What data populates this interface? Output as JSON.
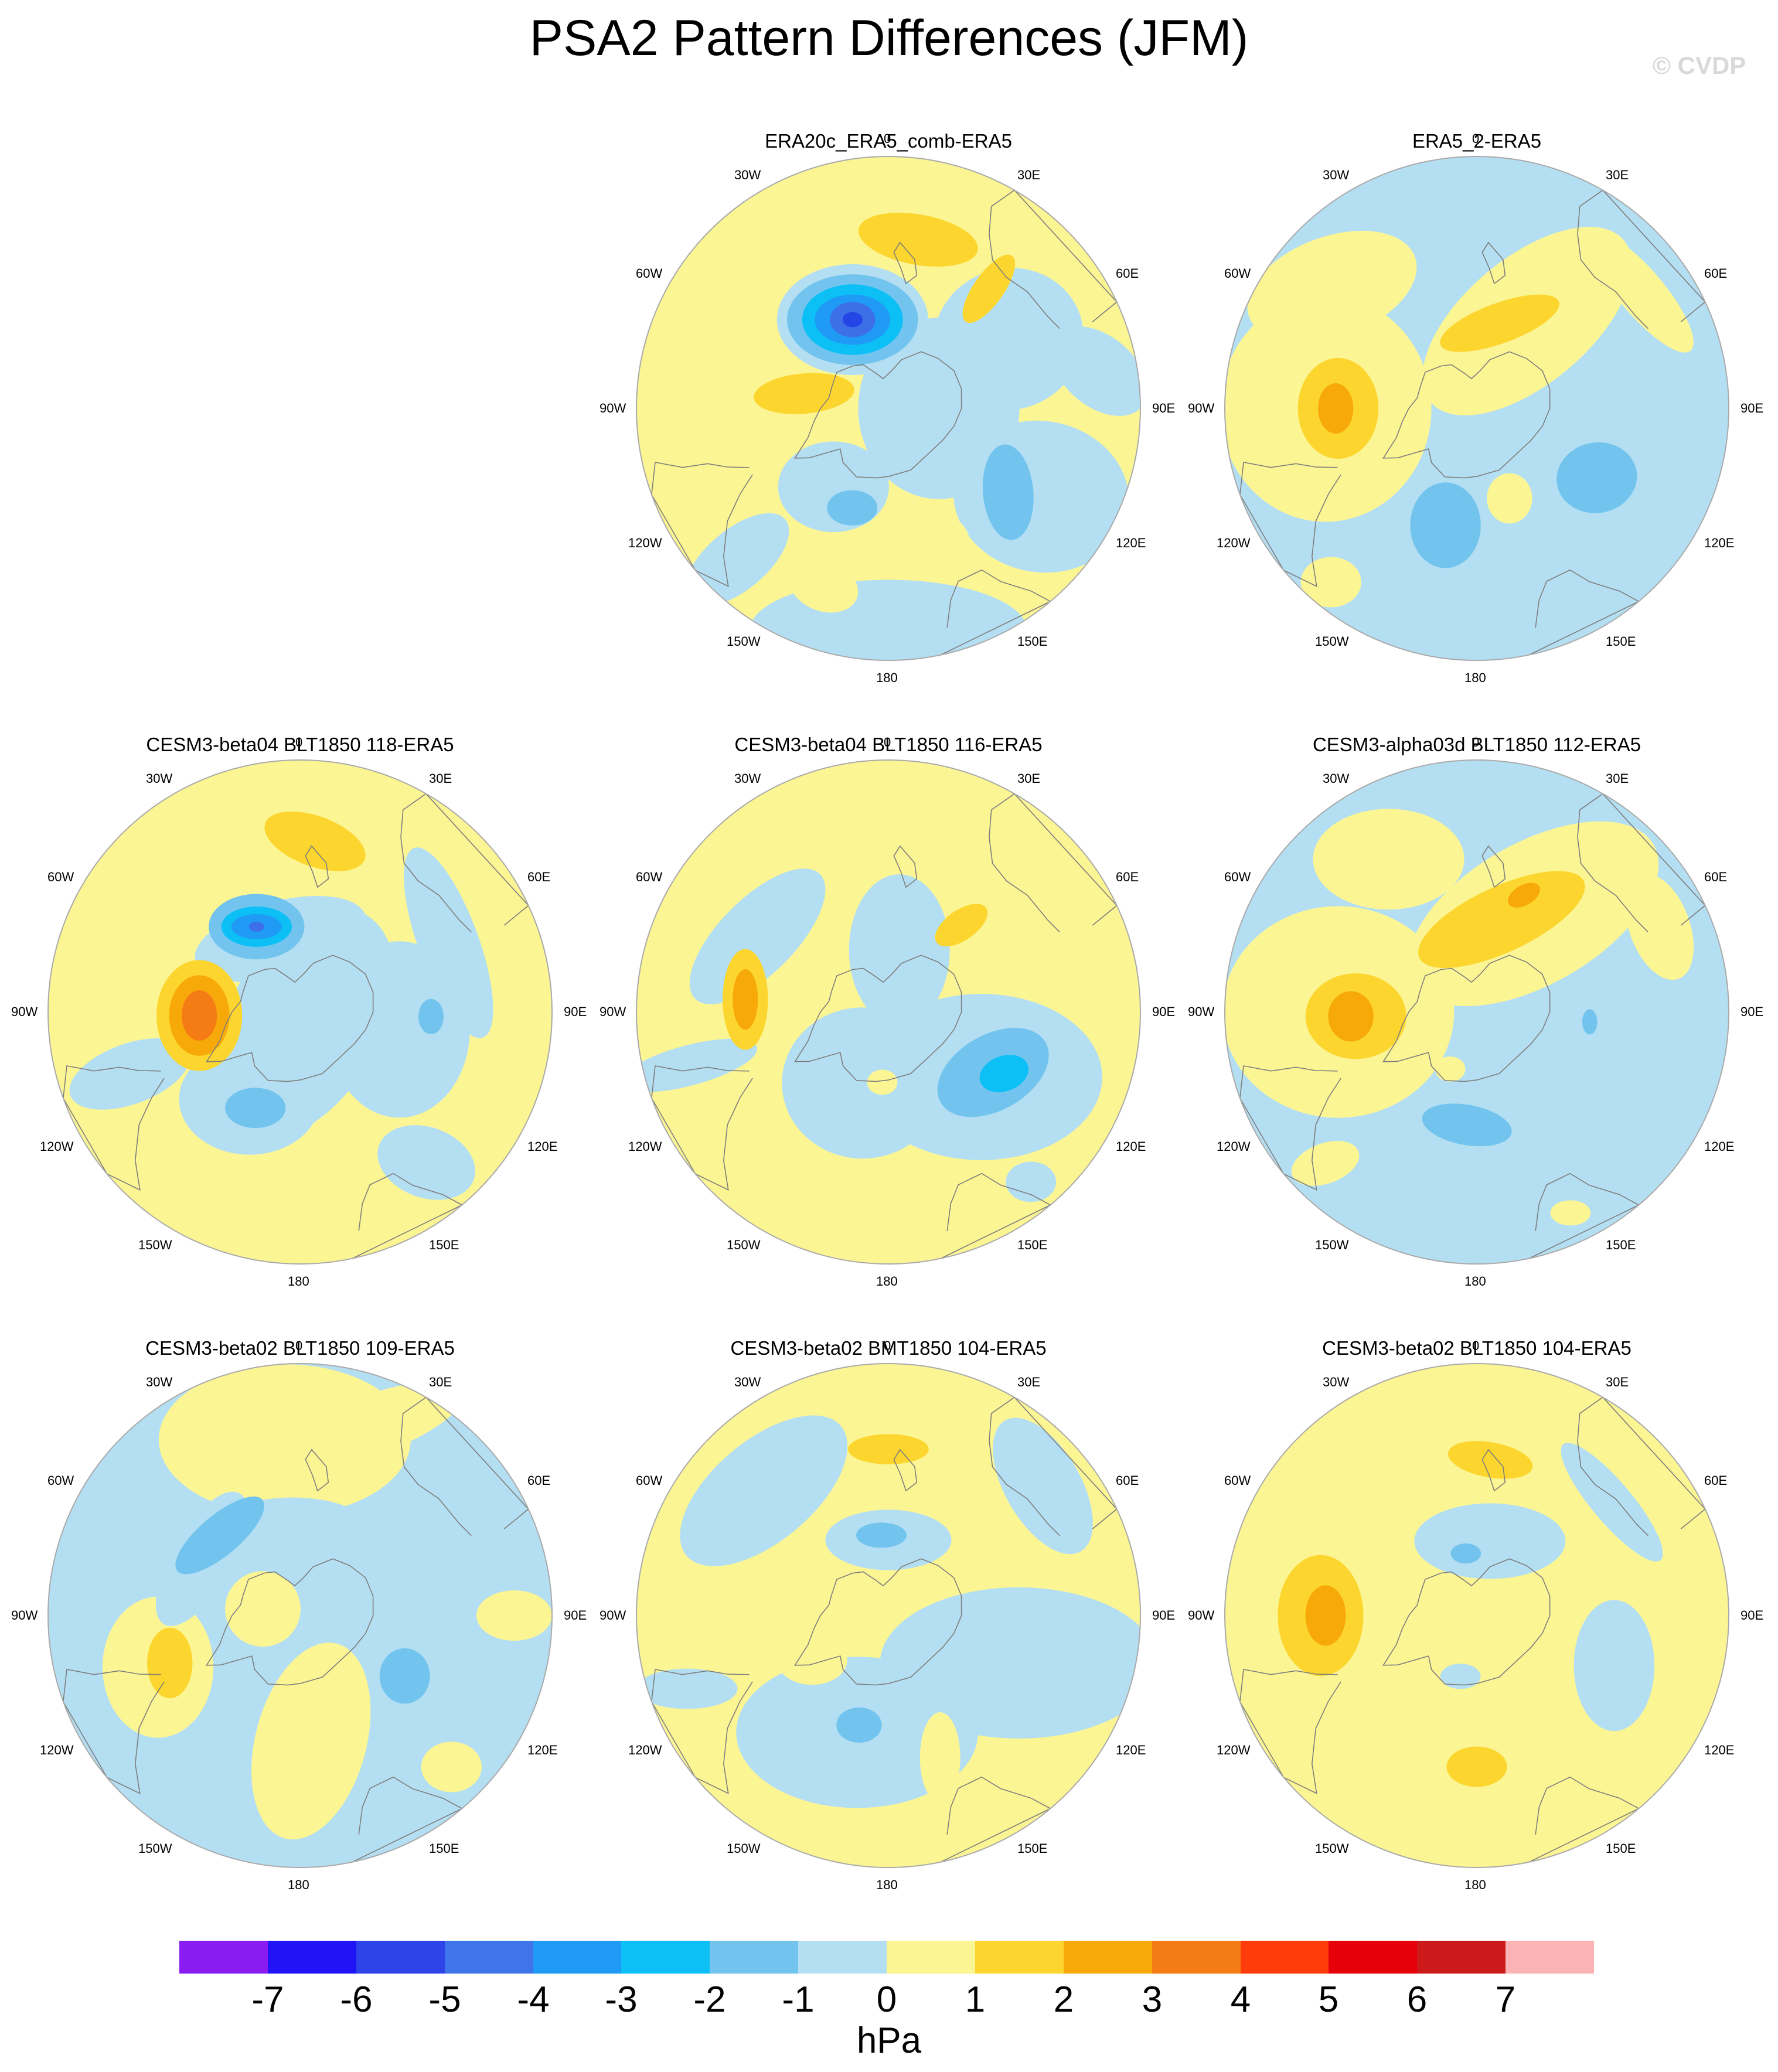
{
  "title": "PSA2 Pattern Differences (JFM)",
  "watermark": "© CVDP",
  "colors": {
    "neg1": "#b4dff2",
    "neg2": "#72c4ef",
    "neg3": "#0cc0f5",
    "neg4": "#1f9af5",
    "neg5": "#3c6fe8",
    "neg6": "#2446e6",
    "pos1": "#fcf594",
    "pos2": "#fcd62e",
    "pos3": "#f7a90a",
    "pos4": "#f57b14",
    "coast": "#7d7d7d",
    "rim": "#aaaaaa"
  },
  "longitude_labels": [
    "0",
    "30E",
    "60E",
    "90E",
    "120E",
    "150E",
    "180",
    "150W",
    "120W",
    "90W",
    "60W",
    "30W"
  ],
  "panels": [
    {
      "title": "ERA20c_ERA5_comb-ERA5",
      "base": "pos1",
      "blobs": [
        {
          "lvl": "neg1",
          "lon": 0,
          "r": 0.88,
          "a": 0.55,
          "b": 0.2,
          "rot": 0
        },
        {
          "lvl": "neg1",
          "lon": 60,
          "r": 0.7,
          "a": 0.35,
          "b": 0.3,
          "rot": 10
        },
        {
          "lvl": "neg1",
          "lon": 90,
          "r": 0.2,
          "a": 0.32,
          "b": 0.36,
          "rot": 0
        },
        {
          "lvl": "neg1",
          "lon": 120,
          "r": 0.55,
          "a": 0.3,
          "b": 0.28,
          "rot": -20
        },
        {
          "lvl": "neg1",
          "lon": 100,
          "r": 0.85,
          "a": 0.22,
          "b": 0.14,
          "rot": 40
        },
        {
          "lvl": "neg1",
          "lon": -45,
          "r": 0.85,
          "a": 0.25,
          "b": 0.12,
          "rot": -40
        },
        {
          "lvl": "neg1",
          "lon": -35,
          "r": 0.38,
          "a": 0.22,
          "b": 0.18,
          "rot": 0
        },
        {
          "lvl": "pos1",
          "lon": 15,
          "r": 0.55,
          "a": 0.18,
          "b": 0.13,
          "rot": 0
        },
        {
          "lvl": "pos1",
          "lon": -20,
          "r": 0.75,
          "a": 0.14,
          "b": 0.1,
          "rot": 20
        },
        {
          "lvl": "neg2",
          "lon": -20,
          "r": 0.42,
          "a": 0.1,
          "b": 0.07,
          "rot": 0
        },
        {
          "lvl": "neg2",
          "lon": 55,
          "r": 0.58,
          "a": 0.1,
          "b": 0.19,
          "rot": -5
        },
        {
          "lvl": "pos2",
          "lon": -100,
          "r": 0.34,
          "a": 0.2,
          "b": 0.08,
          "rot": -5
        },
        {
          "lvl": "neg1",
          "lon": -158,
          "r": 0.38,
          "a": 0.3,
          "b": 0.22,
          "rot": 0
        },
        {
          "lvl": "neg2",
          "lon": -158,
          "r": 0.38,
          "a": 0.26,
          "b": 0.18,
          "rot": 0
        },
        {
          "lvl": "neg3",
          "lon": -158,
          "r": 0.38,
          "a": 0.2,
          "b": 0.14,
          "rot": 0
        },
        {
          "lvl": "neg4",
          "lon": -158,
          "r": 0.38,
          "a": 0.15,
          "b": 0.1,
          "rot": 0
        },
        {
          "lvl": "neg5",
          "lon": -158,
          "r": 0.38,
          "a": 0.09,
          "b": 0.07,
          "rot": 0
        },
        {
          "lvl": "neg6",
          "lon": -158,
          "r": 0.38,
          "a": 0.04,
          "b": 0.03,
          "rot": 0
        },
        {
          "lvl": "pos2",
          "lon": 170,
          "r": 0.68,
          "a": 0.24,
          "b": 0.1,
          "rot": 10
        },
        {
          "lvl": "pos2",
          "lon": 140,
          "r": 0.62,
          "a": 0.16,
          "b": 0.06,
          "rot": -55
        }
      ]
    },
    {
      "title": "ERA5_2-ERA5",
      "base": "neg1",
      "blobs": [
        {
          "lvl": "pos1",
          "lon": -90,
          "r": 0.6,
          "a": 0.42,
          "b": 0.45,
          "rot": 0
        },
        {
          "lvl": "pos1",
          "lon": -130,
          "r": 0.75,
          "a": 0.35,
          "b": 0.2,
          "rot": -20
        },
        {
          "lvl": "pos1",
          "lon": 150,
          "r": 0.4,
          "a": 0.5,
          "b": 0.25,
          "rot": -40
        },
        {
          "lvl": "pos1",
          "lon": -40,
          "r": 0.9,
          "a": 0.12,
          "b": 0.1,
          "rot": 0
        },
        {
          "lvl": "pos1",
          "lon": 20,
          "r": 0.38,
          "a": 0.09,
          "b": 0.1,
          "rot": 0
        },
        {
          "lvl": "pos1",
          "lon": 125,
          "r": 0.8,
          "a": 0.3,
          "b": 0.09,
          "rot": 50
        },
        {
          "lvl": "neg2",
          "lon": -15,
          "r": 0.48,
          "a": 0.14,
          "b": 0.17,
          "rot": 0
        },
        {
          "lvl": "neg2",
          "lon": 60,
          "r": 0.55,
          "a": 0.16,
          "b": 0.14,
          "rot": -10
        },
        {
          "lvl": "neg1",
          "lon": 90,
          "r": 0.85,
          "a": 0.14,
          "b": 0.1,
          "rot": 0
        },
        {
          "lvl": "pos2",
          "lon": -90,
          "r": 0.55,
          "a": 0.16,
          "b": 0.2,
          "rot": 0
        },
        {
          "lvl": "pos3",
          "lon": -90,
          "r": 0.56,
          "a": 0.07,
          "b": 0.1,
          "rot": 0
        },
        {
          "lvl": "pos2",
          "lon": 165,
          "r": 0.35,
          "a": 0.25,
          "b": 0.08,
          "rot": -20
        }
      ]
    },
    {
      "title": "CESM3-beta04 BLT1850 118-ERA5",
      "base": "pos1",
      "blobs": [
        {
          "lvl": "neg1",
          "lon": 15,
          "r": 0.05,
          "a": 0.3,
          "b": 0.5,
          "rot": 30
        },
        {
          "lvl": "neg1",
          "lon": -30,
          "r": 0.4,
          "a": 0.28,
          "b": 0.22,
          "rot": 0
        },
        {
          "lvl": "neg1",
          "lon": -70,
          "r": 0.72,
          "a": 0.25,
          "b": 0.12,
          "rot": -20
        },
        {
          "lvl": "neg1",
          "lon": 80,
          "r": 0.4,
          "a": 0.28,
          "b": 0.35,
          "rot": 0
        },
        {
          "lvl": "neg1",
          "lon": 40,
          "r": 0.78,
          "a": 0.2,
          "b": 0.14,
          "rot": 20
        },
        {
          "lvl": "neg1",
          "lon": 115,
          "r": 0.65,
          "a": 0.4,
          "b": 0.12,
          "rot": 70
        },
        {
          "lvl": "neg1",
          "lon": -165,
          "r": 0.3,
          "a": 0.35,
          "b": 0.15,
          "rot": -15
        },
        {
          "lvl": "neg2",
          "lon": -25,
          "r": 0.42,
          "a": 0.12,
          "b": 0.08,
          "rot": 0
        },
        {
          "lvl": "neg2",
          "lon": 88,
          "r": 0.52,
          "a": 0.05,
          "b": 0.07,
          "rot": 0
        },
        {
          "lvl": "pos2",
          "lon": -88,
          "r": 0.4,
          "a": 0.17,
          "b": 0.22,
          "rot": 0
        },
        {
          "lvl": "pos3",
          "lon": -88,
          "r": 0.4,
          "a": 0.12,
          "b": 0.16,
          "rot": 0
        },
        {
          "lvl": "pos4",
          "lon": -88,
          "r": 0.4,
          "a": 0.07,
          "b": 0.1,
          "rot": 0
        },
        {
          "lvl": "neg2",
          "lon": -153,
          "r": 0.38,
          "a": 0.19,
          "b": 0.13,
          "rot": 0
        },
        {
          "lvl": "neg3",
          "lon": -153,
          "r": 0.38,
          "a": 0.14,
          "b": 0.08,
          "rot": 0
        },
        {
          "lvl": "neg4",
          "lon": -153,
          "r": 0.38,
          "a": 0.1,
          "b": 0.05,
          "rot": 0
        },
        {
          "lvl": "neg5",
          "lon": -153,
          "r": 0.38,
          "a": 0.03,
          "b": 0.02,
          "rot": 0
        },
        {
          "lvl": "pos2",
          "lon": 175,
          "r": 0.68,
          "a": 0.21,
          "b": 0.1,
          "rot": 20
        }
      ]
    },
    {
      "title": "CESM3-beta04 BLT1850 116-ERA5",
      "base": "pos1",
      "blobs": [
        {
          "lvl": "neg1",
          "lon": 55,
          "r": 0.45,
          "a": 0.48,
          "b": 0.33,
          "rot": 0
        },
        {
          "lvl": "neg1",
          "lon": -20,
          "r": 0.3,
          "a": 0.32,
          "b": 0.3,
          "rot": 0
        },
        {
          "lvl": "neg1",
          "lon": 170,
          "r": 0.25,
          "a": 0.2,
          "b": 0.3,
          "rot": 0
        },
        {
          "lvl": "neg1",
          "lon": -75,
          "r": 0.82,
          "a": 0.28,
          "b": 0.08,
          "rot": -15
        },
        {
          "lvl": "neg1",
          "lon": -120,
          "r": 0.6,
          "a": 0.35,
          "b": 0.15,
          "rot": -45
        },
        {
          "lvl": "neg1",
          "lon": 40,
          "r": 0.88,
          "a": 0.1,
          "b": 0.08,
          "rot": 0
        },
        {
          "lvl": "pos1",
          "lon": -5,
          "r": 0.28,
          "a": 0.06,
          "b": 0.05,
          "rot": 0
        },
        {
          "lvl": "neg2",
          "lon": 60,
          "r": 0.48,
          "a": 0.24,
          "b": 0.15,
          "rot": -30
        },
        {
          "lvl": "neg3",
          "lon": 62,
          "r": 0.52,
          "a": 0.1,
          "b": 0.07,
          "rot": -20
        },
        {
          "lvl": "pos2",
          "lon": -95,
          "r": 0.57,
          "a": 0.09,
          "b": 0.2,
          "rot": 0
        },
        {
          "lvl": "pos3",
          "lon": -95,
          "r": 0.57,
          "a": 0.05,
          "b": 0.12,
          "rot": 0
        },
        {
          "lvl": "pos2",
          "lon": 140,
          "r": 0.45,
          "a": 0.12,
          "b": 0.06,
          "rot": -35
        }
      ]
    },
    {
      "title": "CESM3-alpha03d BLT1850 112-ERA5",
      "base": "neg1",
      "blobs": [
        {
          "lvl": "pos1",
          "lon": -90,
          "r": 0.55,
          "a": 0.46,
          "b": 0.42,
          "rot": 0
        },
        {
          "lvl": "pos1",
          "lon": 150,
          "r": 0.45,
          "a": 0.55,
          "b": 0.28,
          "rot": -30
        },
        {
          "lvl": "pos1",
          "lon": -150,
          "r": 0.7,
          "a": 0.3,
          "b": 0.2,
          "rot": 0
        },
        {
          "lvl": "pos1",
          "lon": 115,
          "r": 0.8,
          "a": 0.22,
          "b": 0.12,
          "rot": 70
        },
        {
          "lvl": "pos1",
          "lon": -45,
          "r": 0.85,
          "a": 0.14,
          "b": 0.08,
          "rot": -20
        },
        {
          "lvl": "pos1",
          "lon": 25,
          "r": 0.88,
          "a": 0.08,
          "b": 0.05,
          "rot": 0
        },
        {
          "lvl": "pos1",
          "lon": -25,
          "r": 0.25,
          "a": 0.06,
          "b": 0.05,
          "rot": 0
        },
        {
          "lvl": "neg2",
          "lon": -5,
          "r": 0.45,
          "a": 0.18,
          "b": 0.08,
          "rot": 10
        },
        {
          "lvl": "neg2",
          "lon": 85,
          "r": 0.45,
          "a": 0.03,
          "b": 0.05,
          "rot": 0
        },
        {
          "lvl": "pos2",
          "lon": -88,
          "r": 0.48,
          "a": 0.2,
          "b": 0.17,
          "rot": 0
        },
        {
          "lvl": "pos3",
          "lon": -88,
          "r": 0.5,
          "a": 0.09,
          "b": 0.1,
          "rot": 0
        },
        {
          "lvl": "pos2",
          "lon": 165,
          "r": 0.38,
          "a": 0.36,
          "b": 0.13,
          "rot": -25
        },
        {
          "lvl": "pos3",
          "lon": 158,
          "r": 0.5,
          "a": 0.07,
          "b": 0.04,
          "rot": -30
        }
      ]
    },
    {
      "title": "CESM3-beta02 BLT1850 109-ERA5",
      "base": "neg1",
      "blobs": [
        {
          "lvl": "pos1",
          "lon": 5,
          "r": 0.5,
          "a": 0.22,
          "b": 0.4,
          "rot": 15
        },
        {
          "lvl": "pos1",
          "lon": -70,
          "r": 0.6,
          "a": 0.22,
          "b": 0.28,
          "rot": 0
        },
        {
          "lvl": "pos1",
          "lon": -175,
          "r": 0.7,
          "a": 0.5,
          "b": 0.3,
          "rot": 0
        },
        {
          "lvl": "pos1",
          "lon": 160,
          "r": 0.8,
          "a": 0.4,
          "b": 0.12,
          "rot": -20
        },
        {
          "lvl": "pos1",
          "lon": 90,
          "r": 0.85,
          "a": 0.15,
          "b": 0.1,
          "rot": 0
        },
        {
          "lvl": "pos1",
          "lon": 45,
          "r": 0.85,
          "a": 0.12,
          "b": 0.1,
          "rot": 0
        },
        {
          "lvl": "pos1",
          "lon": -100,
          "r": 0.15,
          "a": 0.15,
          "b": 0.15,
          "rot": 0
        },
        {
          "lvl": "neg1",
          "lon": -120,
          "r": 0.45,
          "a": 0.3,
          "b": 0.12,
          "rot": -60
        },
        {
          "lvl": "neg1",
          "lon": -175,
          "r": 0.35,
          "a": 0.3,
          "b": 0.12,
          "rot": 0
        },
        {
          "lvl": "pos2",
          "lon": -70,
          "r": 0.55,
          "a": 0.09,
          "b": 0.14,
          "rot": 0
        },
        {
          "lvl": "neg2",
          "lon": 60,
          "r": 0.48,
          "a": 0.1,
          "b": 0.11,
          "rot": 0
        },
        {
          "lvl": "neg2",
          "lon": -135,
          "r": 0.45,
          "a": 0.22,
          "b": 0.08,
          "rot": -40
        }
      ]
    },
    {
      "title": "CESM3-beta02 BMT1850 104-ERA5",
      "base": "pos1",
      "blobs": [
        {
          "lvl": "neg1",
          "lon": -15,
          "r": 0.48,
          "a": 0.48,
          "b": 0.3,
          "rot": 0
        },
        {
          "lvl": "neg1",
          "lon": 70,
          "r": 0.55,
          "a": 0.55,
          "b": 0.3,
          "rot": 0
        },
        {
          "lvl": "neg1",
          "lon": 130,
          "r": 0.8,
          "a": 0.3,
          "b": 0.15,
          "rot": 60
        },
        {
          "lvl": "neg1",
          "lon": -135,
          "r": 0.7,
          "a": 0.4,
          "b": 0.2,
          "rot": -40
        },
        {
          "lvl": "neg1",
          "lon": 180,
          "r": 0.3,
          "a": 0.25,
          "b": 0.12,
          "rot": 0
        },
        {
          "lvl": "neg1",
          "lon": -70,
          "r": 0.85,
          "a": 0.2,
          "b": 0.08,
          "rot": 0
        },
        {
          "lvl": "pos1",
          "lon": -60,
          "r": 0.35,
          "a": 0.14,
          "b": 0.1,
          "rot": 0
        },
        {
          "lvl": "pos1",
          "lon": 20,
          "r": 0.6,
          "a": 0.08,
          "b": 0.18,
          "rot": 0
        },
        {
          "lvl": "neg2",
          "lon": -15,
          "r": 0.45,
          "a": 0.09,
          "b": 0.07,
          "rot": 0
        },
        {
          "lvl": "neg2",
          "lon": -175,
          "r": 0.32,
          "a": 0.1,
          "b": 0.05,
          "rot": 0
        },
        {
          "lvl": "pos2",
          "lon": 180,
          "r": 0.66,
          "a": 0.16,
          "b": 0.06,
          "rot": 0
        }
      ]
    },
    {
      "title": "CESM3-beta02 BLT1850 104-ERA5",
      "base": "pos1",
      "blobs": [
        {
          "lvl": "neg1",
          "lon": 70,
          "r": 0.58,
          "a": 0.16,
          "b": 0.26,
          "rot": 0
        },
        {
          "lvl": "neg1",
          "lon": 170,
          "r": 0.3,
          "a": 0.3,
          "b": 0.15,
          "rot": 0
        },
        {
          "lvl": "neg1",
          "lon": 130,
          "r": 0.7,
          "a": 0.3,
          "b": 0.08,
          "rot": 50
        },
        {
          "lvl": "neg1",
          "lon": -15,
          "r": 0.25,
          "a": 0.08,
          "b": 0.05,
          "rot": 0
        },
        {
          "lvl": "pos2",
          "lon": -90,
          "r": 0.62,
          "a": 0.17,
          "b": 0.24,
          "rot": 0
        },
        {
          "lvl": "pos3",
          "lon": -90,
          "r": 0.6,
          "a": 0.08,
          "b": 0.12,
          "rot": 0
        },
        {
          "lvl": "pos2",
          "lon": 0,
          "r": 0.6,
          "a": 0.12,
          "b": 0.08,
          "rot": 0
        },
        {
          "lvl": "neg2",
          "lon": -170,
          "r": 0.25,
          "a": 0.06,
          "b": 0.04,
          "rot": 0
        },
        {
          "lvl": "pos2",
          "lon": 175,
          "r": 0.62,
          "a": 0.17,
          "b": 0.07,
          "rot": 10
        }
      ]
    }
  ],
  "colorbar": {
    "colors": [
      "#8a1cf2",
      "#2013f5",
      "#2e43e8",
      "#3f74eb",
      "#1f9af5",
      "#0cc0f5",
      "#72c4ef",
      "#b4dff2",
      "#fcf594",
      "#fcd62e",
      "#f7a90a",
      "#f57b14",
      "#ff3c0a",
      "#e6000a",
      "#cc1a1a",
      "#fcb3b3"
    ],
    "ticks": [
      "-7",
      "-6",
      "-5",
      "-4",
      "-3",
      "-2",
      "-1",
      "0",
      "1",
      "2",
      "3",
      "4",
      "5",
      "6",
      "7"
    ],
    "units": "hPa"
  }
}
